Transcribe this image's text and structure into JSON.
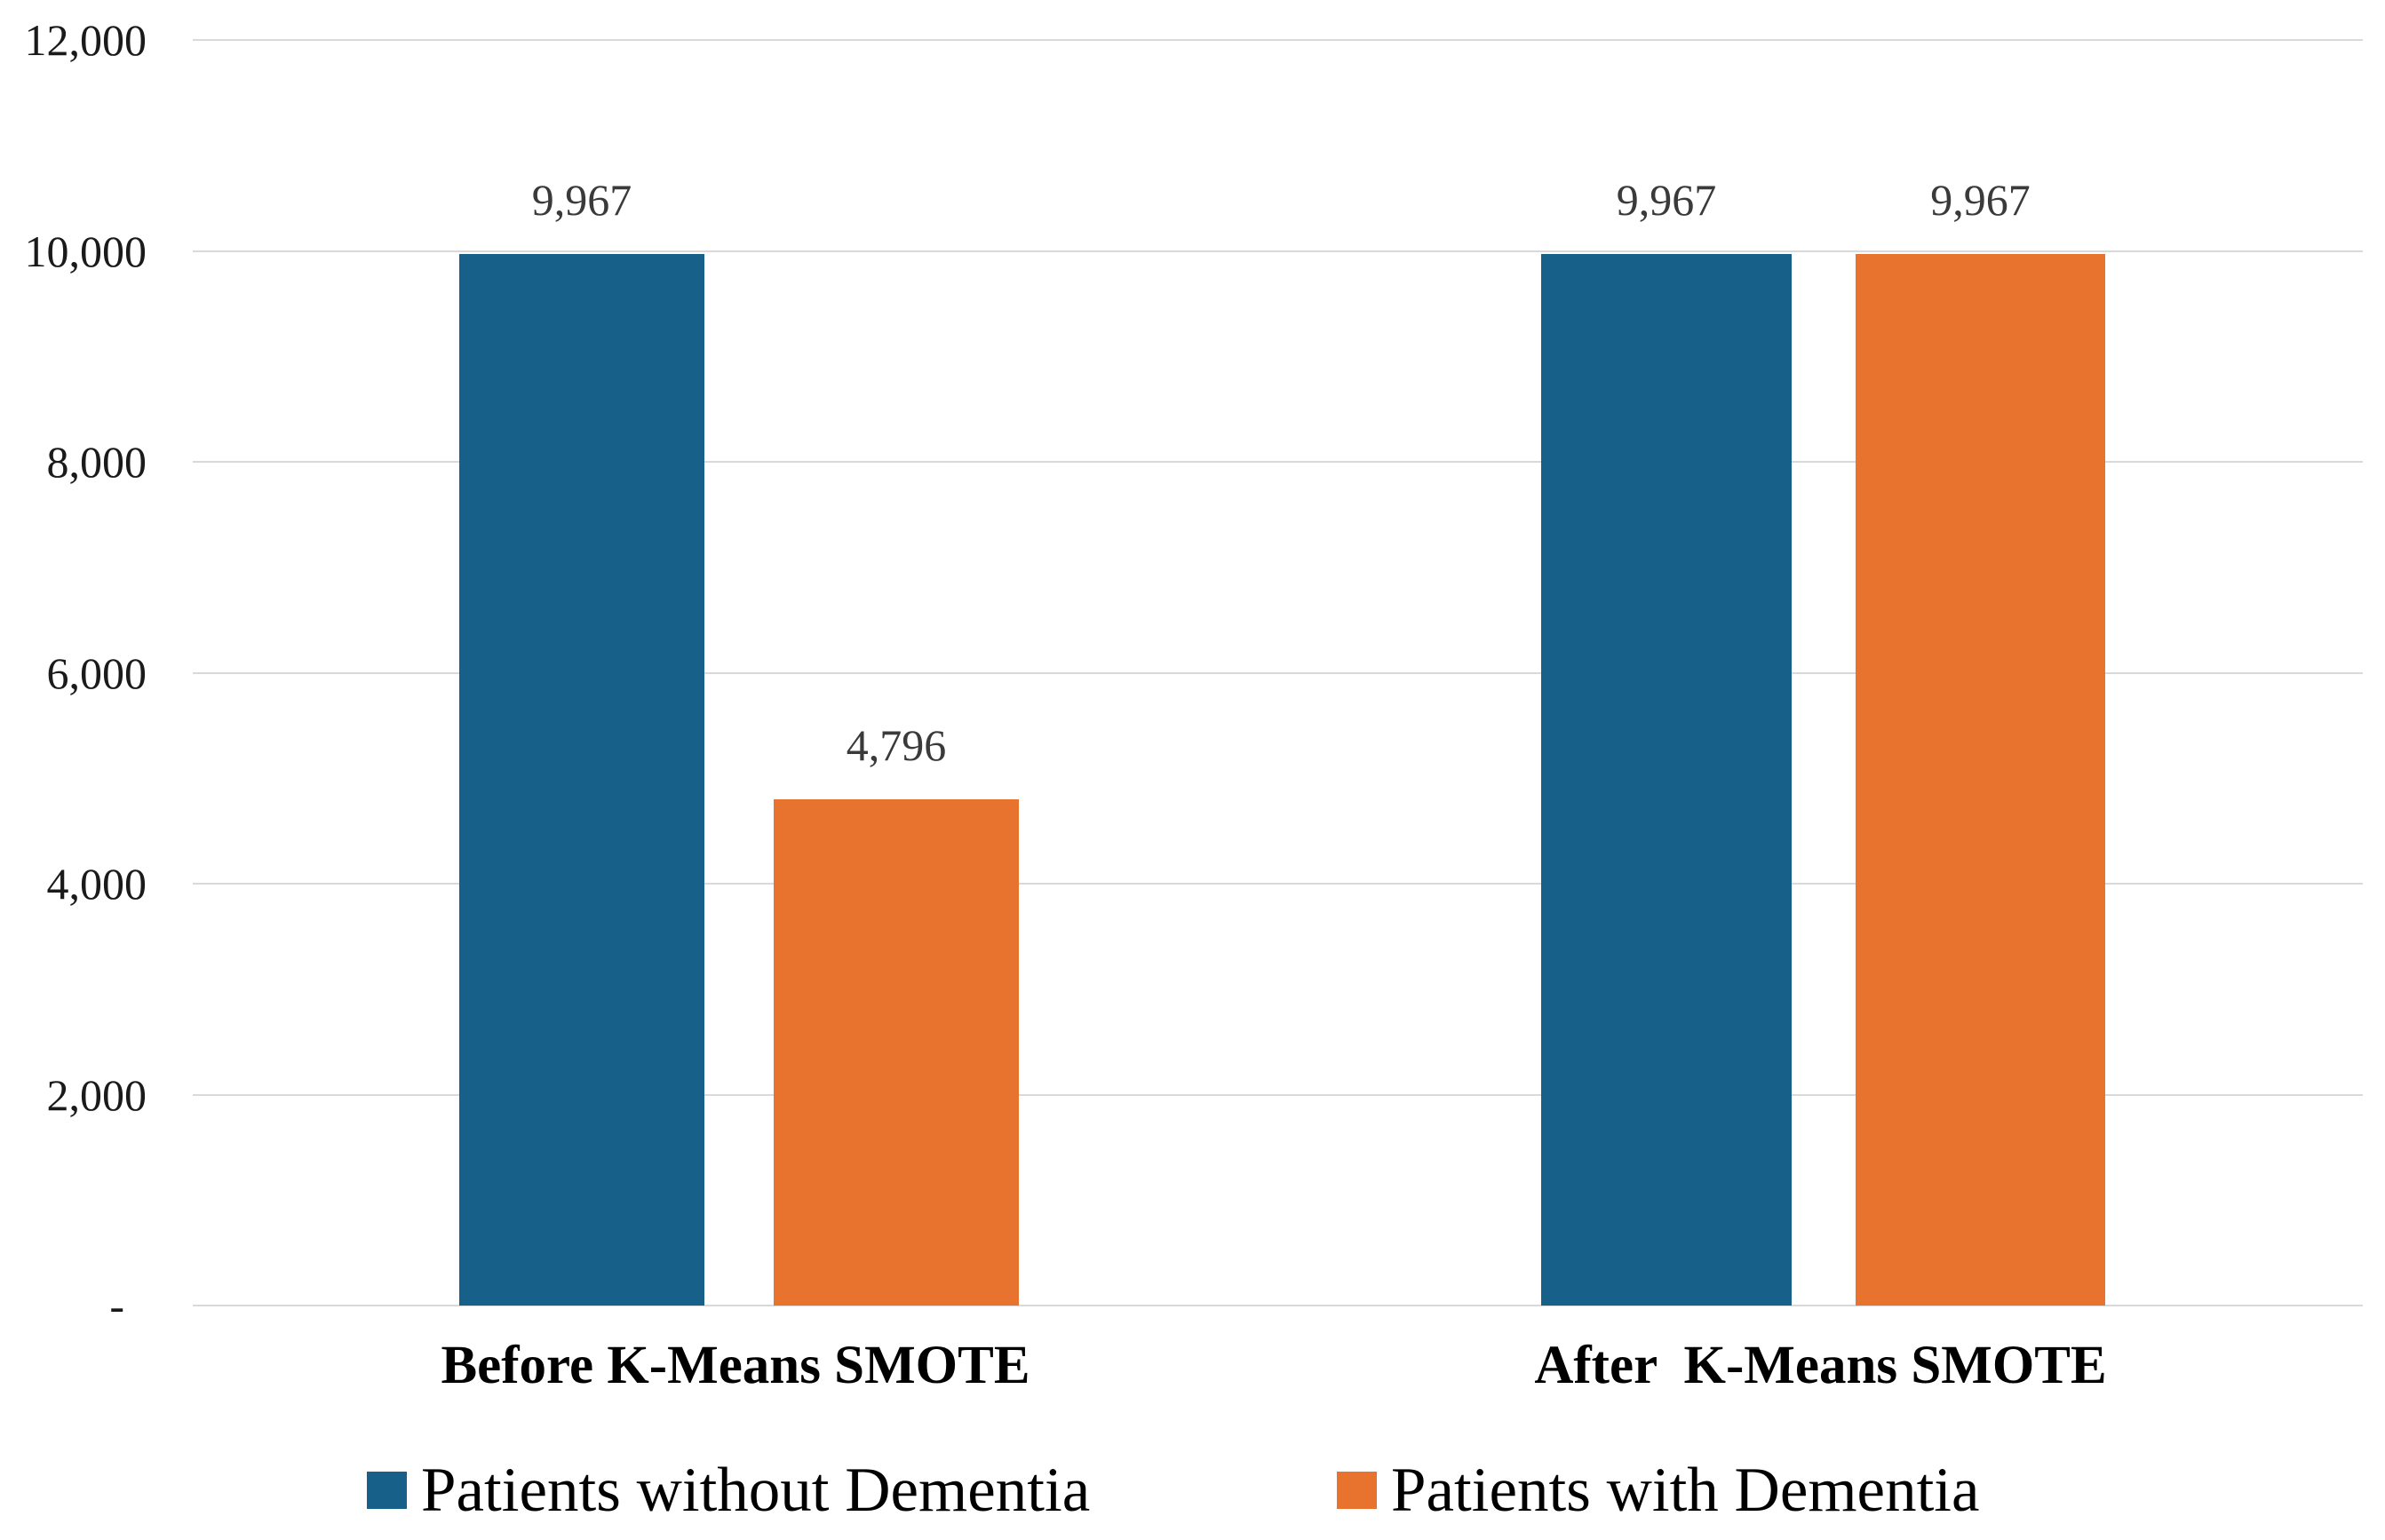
{
  "chart_data": {
    "type": "bar",
    "title": "",
    "categories": [
      "Before K-Means SMOTE",
      "After  K-Means SMOTE"
    ],
    "series": [
      {
        "name": "Patients without Dementia",
        "color": "#17608a",
        "values": [
          9967,
          9967
        ],
        "display_values": [
          "9,967",
          "9,967"
        ]
      },
      {
        "name": "Patients with Dementia",
        "color": "#e8732e",
        "values": [
          4796,
          9967
        ],
        "display_values": [
          "4,796",
          "9,967"
        ]
      }
    ],
    "y_axis": {
      "min": 0,
      "max": 12000,
      "tick_interval": 2000,
      "tick_labels": [
        "12,000",
        "10,000",
        "8,000",
        "6,000",
        "4,000",
        "2,000",
        "-  "
      ]
    },
    "xlabel": "",
    "ylabel": "",
    "grid": true,
    "gridline_color": "#d9d9d9",
    "legend_position": "bottom",
    "background_color": "#ffffff"
  }
}
